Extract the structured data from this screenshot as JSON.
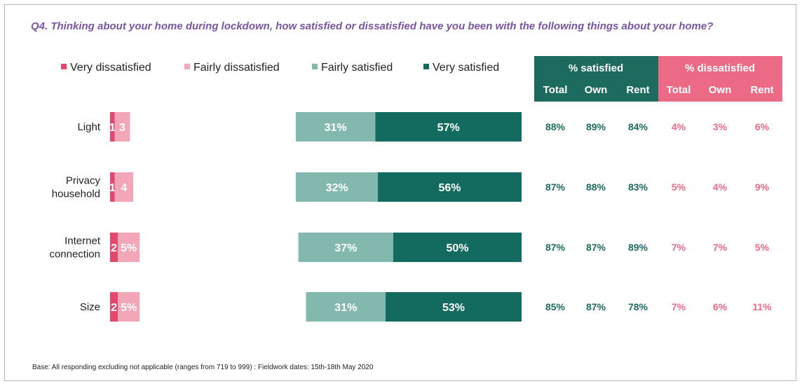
{
  "title": "Q4. Thinking about your home during lockdown, how satisfied or dissatisfied have you been with the following things about your home?",
  "footnote": "Base: All responding excluding not applicable (ranges from 719 to 999) : Fieldwork dates: 15th-18th May 2020",
  "colors": {
    "very_dissatisfied": "#e0486c",
    "fairly_dissatisfied": "#f3a6b7",
    "fairly_satisfied": "#82b8ad",
    "very_satisfied": "#126b5e",
    "satisfied_header": "#1d6b5f",
    "dissatisfied_header": "#ec6a86"
  },
  "chart_data": {
    "type": "bar",
    "orientation": "horizontal",
    "stacked": "diverging",
    "categories": [
      [
        "Light"
      ],
      [
        "Privacy",
        "household"
      ],
      [
        "Internet",
        "connection"
      ],
      [
        "Size"
      ]
    ],
    "series": [
      {
        "name": "Very dissatisfied",
        "values": [
          1,
          1,
          2,
          2
        ],
        "labels": [
          "1",
          "1",
          "2",
          "2"
        ]
      },
      {
        "name": "Fairly dissatisfied",
        "values": [
          3,
          4,
          5,
          5
        ],
        "labels": [
          "3",
          "4",
          "5%",
          "5%"
        ]
      },
      {
        "name": "Fairly satisfied",
        "values": [
          31,
          32,
          37,
          31
        ],
        "labels": [
          "31%",
          "32%",
          "37%",
          "31%"
        ]
      },
      {
        "name": "Very satisfied",
        "values": [
          57,
          56,
          50,
          53
        ],
        "labels": [
          "57%",
          "56%",
          "50%",
          "53%"
        ]
      }
    ],
    "legend_position": "top",
    "table": {
      "group_headers": [
        "% satisfied",
        "% dissatisfied"
      ],
      "column_headers": [
        "Total",
        "Own",
        "Rent",
        "Total",
        "Own",
        "Rent"
      ],
      "rows": [
        [
          "88%",
          "89%",
          "84%",
          "4%",
          "3%",
          "6%"
        ],
        [
          "87%",
          "88%",
          "83%",
          "5%",
          "4%",
          "9%"
        ],
        [
          "87%",
          "87%",
          "89%",
          "7%",
          "7%",
          "5%"
        ],
        [
          "85%",
          "87%",
          "78%",
          "7%",
          "6%",
          "11%"
        ]
      ]
    }
  }
}
